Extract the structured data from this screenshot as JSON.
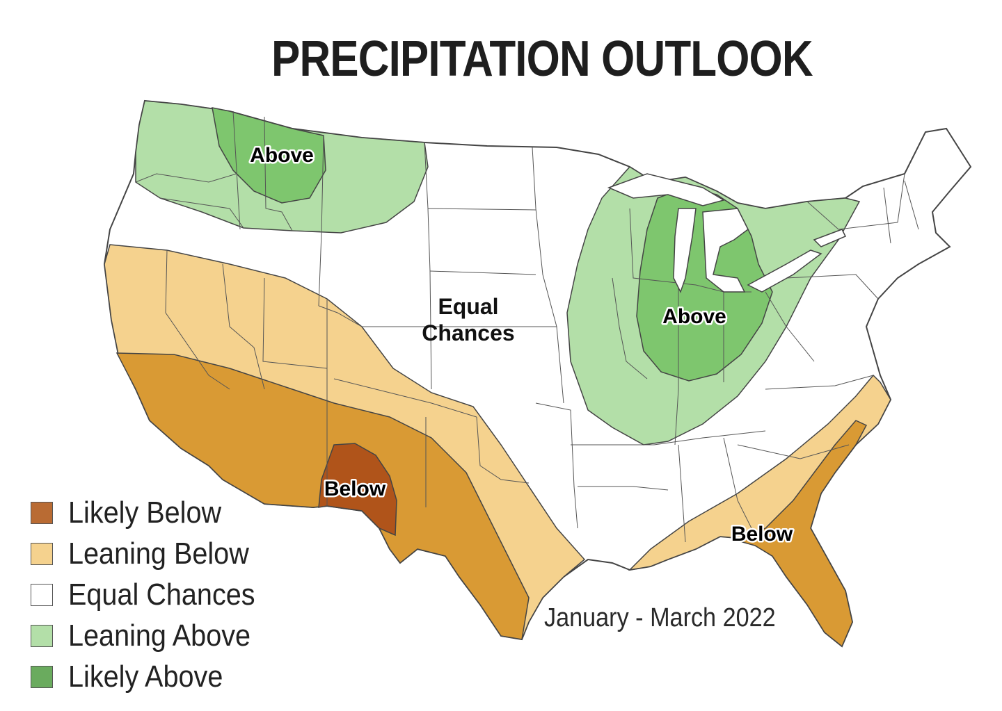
{
  "title": "PRECIPITATION OUTLOOK",
  "period": "January - March 2022",
  "colors": {
    "likely_below": "#b0541a",
    "leaning_below_strong": "#d99a34",
    "leaning_below": "#f5d28e",
    "equal": "#ffffff",
    "leaning_above": "#b3dfa8",
    "likely_above": "#7ec66e",
    "border": "#444444"
  },
  "legend": [
    {
      "label": "Likely Below",
      "color": "#b96b33"
    },
    {
      "label": "Leaning Below",
      "color": "#f5d28e"
    },
    {
      "label": "Equal Chances",
      "color": "#ffffff"
    },
    {
      "label": "Leaning Above",
      "color": "#b3dfa8"
    },
    {
      "label": "Likely Above",
      "color": "#6aab5e"
    }
  ],
  "region_labels": {
    "northwest": "Above",
    "great_lakes": "Above",
    "central": "Equal Chances",
    "southwest": "Below",
    "southeast": "Below"
  },
  "central_lines": [
    "Equal",
    "Chances"
  ]
}
